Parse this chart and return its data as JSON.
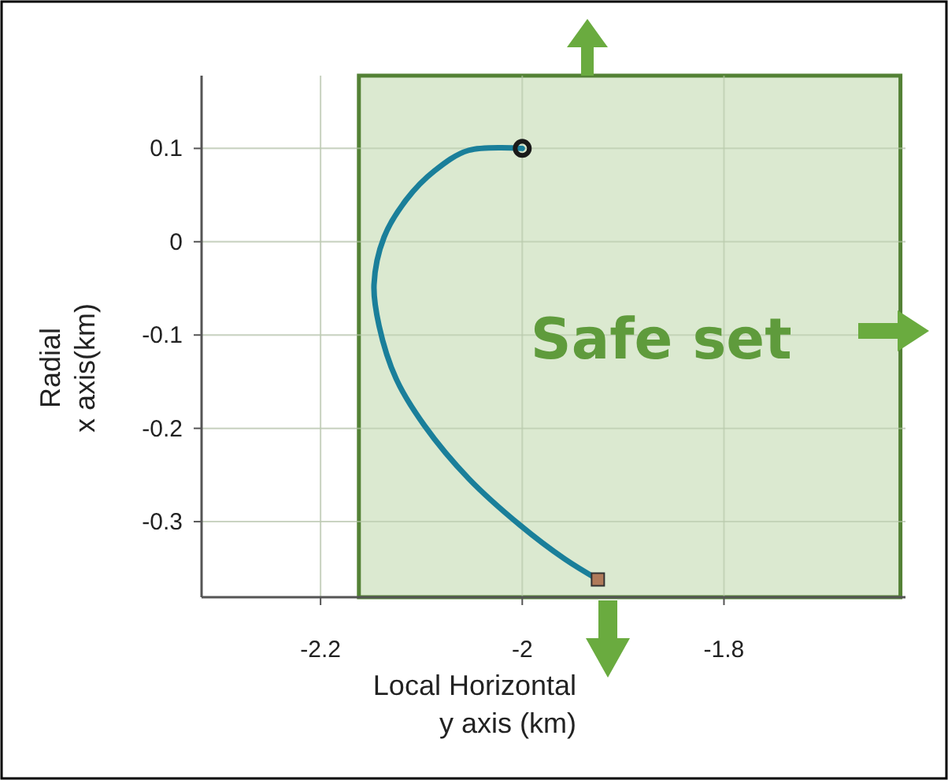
{
  "chart_data": {
    "type": "line",
    "xlabel": "Local Horizontal\ny axis (km)",
    "ylabel": "Radial\nx axis(km)",
    "xlim": [
      -2.318,
      -1.62
    ],
    "ylim": [
      -0.381,
      0.178
    ],
    "xticks": [
      -2.2,
      -2,
      -1.8
    ],
    "yticks": [
      0.1,
      0,
      -0.1,
      -0.2,
      -0.3
    ],
    "grid": true,
    "bands": [
      {
        "axis": "x",
        "from": -2.162,
        "to": -1.625,
        "label": "Safe set",
        "color": "#d5e5c8"
      }
    ],
    "series": [
      {
        "color": "#1a7f9a",
        "marker": "none",
        "x": [
          -2.0,
          -2.053,
          -2.087,
          -2.115,
          -2.137,
          -2.147,
          -2.142,
          -2.125,
          -2.097,
          -2.053,
          -2.002,
          -1.958,
          -1.925
        ],
        "values": [
          0.1,
          0.098,
          0.076,
          0.045,
          0.005,
          -0.046,
          -0.09,
          -0.147,
          -0.197,
          -0.254,
          -0.304,
          -0.34,
          -0.362
        ]
      },
      {
        "type": "scatter",
        "color": "#1a1a1a",
        "marker": "circle",
        "x": [
          -2.0
        ],
        "values": [
          0.1
        ]
      },
      {
        "type": "scatter",
        "color": "#b07a5a",
        "marker": "square",
        "x": [
          -1.925
        ],
        "values": [
          -0.362
        ]
      }
    ]
  }
}
